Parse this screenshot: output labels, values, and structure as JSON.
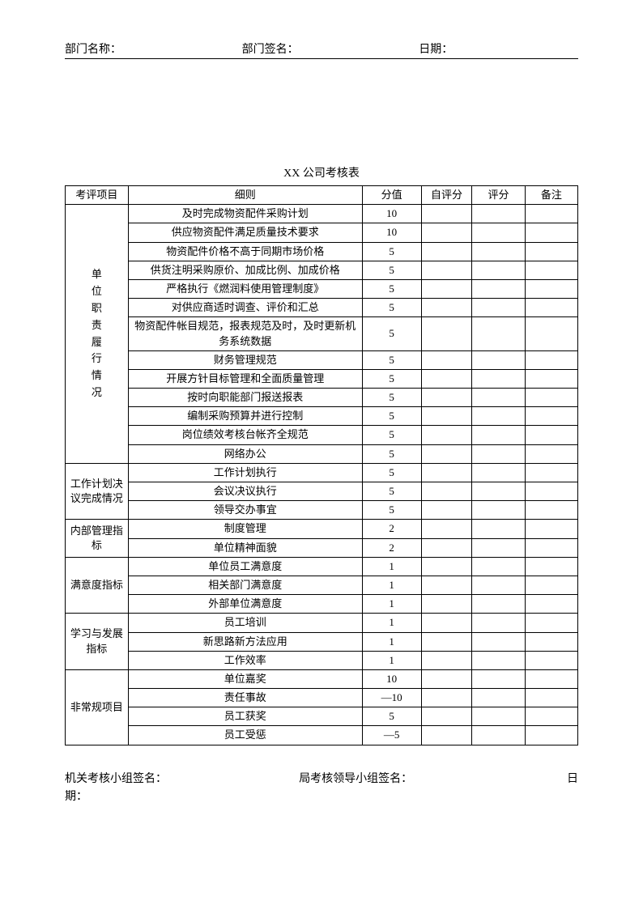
{
  "header": {
    "dept_name_label": "部门名称：",
    "dept_sign_label": "部门签名：",
    "date_label": "日期："
  },
  "title": "XX 公司考核表",
  "table": {
    "columns": {
      "category": "考评项目",
      "detail": "细则",
      "score": "分值",
      "self": "自评分",
      "rating": "评分",
      "note": "备注"
    },
    "groups": [
      {
        "category": "单位职责履行情况",
        "category_vertical": true,
        "rows": [
          {
            "detail": "及时完成物资配件采购计划",
            "score": "10"
          },
          {
            "detail": "供应物资配件满足质量技术要求",
            "score": "10"
          },
          {
            "detail": "物资配件价格不高于同期市场价格",
            "score": "5"
          },
          {
            "detail": "供货注明采购原价、加成比例、加成价格",
            "score": "5"
          },
          {
            "detail": "严格执行《燃润料使用管理制度》",
            "score": "5"
          },
          {
            "detail": "对供应商适时调查、评价和汇总",
            "score": "5"
          },
          {
            "detail": "物资配件帐目规范，报表规范及时，及时更新机务系统数据",
            "score": "5"
          },
          {
            "detail": "财务管理规范",
            "score": "5"
          },
          {
            "detail": "开展方针目标管理和全面质量管理",
            "score": "5"
          },
          {
            "detail": "按时向职能部门报送报表",
            "score": "5"
          },
          {
            "detail": "编制采购预算并进行控制",
            "score": "5"
          },
          {
            "detail": "岗位绩效考核台帐齐全规范",
            "score": "5"
          },
          {
            "detail": "网络办公",
            "score": "5"
          }
        ]
      },
      {
        "category": "工作计划决议完成情况",
        "rows": [
          {
            "detail": "工作计划执行",
            "score": "5"
          },
          {
            "detail": "会议决议执行",
            "score": "5"
          },
          {
            "detail": "领导交办事宜",
            "score": "5"
          }
        ]
      },
      {
        "category": "内部管理指标",
        "rows": [
          {
            "detail": "制度管理",
            "score": "2"
          },
          {
            "detail": "单位精神面貌",
            "score": "2"
          }
        ]
      },
      {
        "category": "满意度指标",
        "rows": [
          {
            "detail": "单位员工满意度",
            "score": "1"
          },
          {
            "detail": "相关部门满意度",
            "score": "1"
          },
          {
            "detail": "外部单位满意度",
            "score": "1"
          }
        ]
      },
      {
        "category": "学习与发展指标",
        "rows": [
          {
            "detail": "员工培训",
            "score": "1"
          },
          {
            "detail": "新思路新方法应用",
            "score": "1"
          },
          {
            "detail": "工作效率",
            "score": "1"
          }
        ]
      },
      {
        "category": "非常规项目",
        "rows": [
          {
            "detail": "单位嘉奖",
            "score": "10"
          },
          {
            "detail": "责任事故",
            "score": "—10"
          },
          {
            "detail": "员工获奖",
            "score": "5"
          },
          {
            "detail": "员工受惩",
            "score": "—5"
          }
        ]
      }
    ]
  },
  "footer": {
    "sign1": "机关考核小组签名：",
    "sign2": "局考核领导小组签名：",
    "date_label": "日",
    "date_label2": "期："
  }
}
